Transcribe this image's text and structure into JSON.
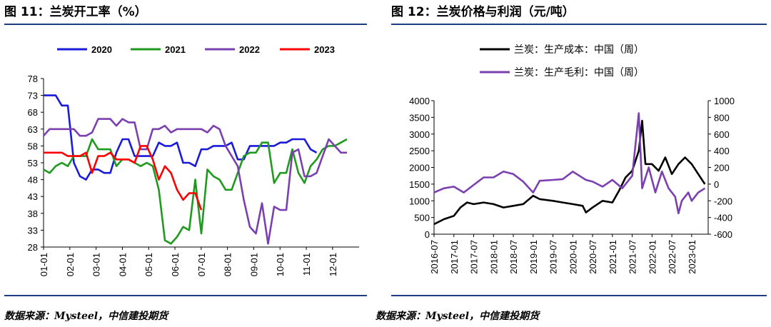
{
  "left": {
    "title": "图 11：兰炭开工率（%）",
    "source": "数据来源：Mysteel，中信建投期货"
  },
  "right": {
    "title": "图 12：兰炭价格与利润（元/吨）",
    "source": "数据来源：Mysteel，中信建投期货"
  },
  "colors": {
    "rule": "#1f3c88",
    "blue": "#1a1adc",
    "green": "#1f9a1f",
    "purple": "#7b3fb0",
    "red": "#ff0000",
    "black": "#000000"
  },
  "chart_data": [
    {
      "type": "line",
      "title": "图 11：兰炭开工率（%）",
      "xlabel": "",
      "ylabel": "",
      "ylim": [
        28,
        78
      ],
      "yticks": [
        78,
        73,
        68,
        63,
        58,
        53,
        48,
        43,
        38,
        33,
        28
      ],
      "xlim": [
        1,
        53
      ],
      "xticks": [
        "01-01",
        "02-01",
        "03-01",
        "04-01",
        "05-01",
        "06-01",
        "07-01",
        "08-01",
        "09-01",
        "10-01",
        "11-01",
        "12-01"
      ],
      "legend_position": "top",
      "series": [
        {
          "name": "2020",
          "color": "#1a1adc",
          "points": [
            [
              1,
              73
            ],
            [
              2,
              73
            ],
            [
              3,
              73
            ],
            [
              4,
              70
            ],
            [
              5,
              70
            ],
            [
              6,
              53
            ],
            [
              7,
              49
            ],
            [
              8,
              48
            ],
            [
              9,
              51
            ],
            [
              10,
              51
            ],
            [
              11,
              50
            ],
            [
              12,
              50
            ],
            [
              13,
              56
            ],
            [
              14,
              60
            ],
            [
              15,
              60
            ],
            [
              16,
              55
            ],
            [
              17,
              55
            ],
            [
              18,
              55
            ],
            [
              19,
              55
            ],
            [
              20,
              59
            ],
            [
              21,
              58
            ],
            [
              22,
              58
            ],
            [
              23,
              59
            ],
            [
              24,
              53
            ],
            [
              25,
              53
            ],
            [
              26,
              52
            ],
            [
              27,
              57
            ],
            [
              28,
              57
            ],
            [
              29,
              58
            ],
            [
              30,
              58
            ],
            [
              31,
              58
            ],
            [
              32,
              59
            ],
            [
              33,
              54
            ],
            [
              34,
              54
            ],
            [
              35,
              58
            ],
            [
              36,
              58
            ],
            [
              37,
              58
            ],
            [
              38,
              58
            ],
            [
              39,
              58
            ],
            [
              40,
              59
            ],
            [
              41,
              59
            ],
            [
              42,
              60
            ],
            [
              43,
              60
            ],
            [
              44,
              60
            ],
            [
              45,
              57
            ],
            [
              46,
              56
            ]
          ]
        },
        {
          "name": "2021",
          "color": "#1f9a1f",
          "points": [
            [
              1,
              51
            ],
            [
              2,
              50
            ],
            [
              3,
              52
            ],
            [
              4,
              53
            ],
            [
              5,
              52
            ],
            [
              6,
              55
            ],
            [
              7,
              55
            ],
            [
              8,
              55
            ],
            [
              9,
              60
            ],
            [
              10,
              57
            ],
            [
              11,
              57
            ],
            [
              12,
              57
            ],
            [
              13,
              52
            ],
            [
              14,
              54
            ],
            [
              15,
              54
            ],
            [
              16,
              53
            ],
            [
              17,
              52
            ],
            [
              18,
              53
            ],
            [
              19,
              52
            ],
            [
              20,
              45
            ],
            [
              21,
              30
            ],
            [
              22,
              29
            ],
            [
              23,
              31
            ],
            [
              24,
              34
            ],
            [
              25,
              33
            ],
            [
              26,
              48
            ],
            [
              27,
              32
            ],
            [
              28,
              51
            ],
            [
              29,
              49
            ],
            [
              30,
              48
            ],
            [
              31,
              45
            ],
            [
              32,
              45
            ],
            [
              33,
              50
            ],
            [
              34,
              55
            ],
            [
              35,
              56
            ],
            [
              36,
              56
            ],
            [
              37,
              59
            ],
            [
              38,
              59
            ],
            [
              39,
              47
            ],
            [
              40,
              50
            ],
            [
              41,
              50
            ],
            [
              42,
              57
            ],
            [
              43,
              50
            ],
            [
              44,
              47
            ],
            [
              45,
              52
            ],
            [
              46,
              54
            ],
            [
              47,
              57
            ],
            [
              48,
              58
            ],
            [
              49,
              58
            ],
            [
              50,
              59
            ],
            [
              51,
              60
            ]
          ]
        },
        {
          "name": "2022",
          "color": "#7b3fb0",
          "points": [
            [
              1,
              61
            ],
            [
              2,
              63
            ],
            [
              3,
              63
            ],
            [
              4,
              63
            ],
            [
              5,
              63
            ],
            [
              6,
              63
            ],
            [
              7,
              61
            ],
            [
              8,
              61
            ],
            [
              9,
              62
            ],
            [
              10,
              66
            ],
            [
              11,
              66
            ],
            [
              12,
              66
            ],
            [
              13,
              64
            ],
            [
              14,
              66
            ],
            [
              15,
              65
            ],
            [
              16,
              65
            ],
            [
              17,
              57
            ],
            [
              18,
              57
            ],
            [
              19,
              63
            ],
            [
              20,
              63
            ],
            [
              21,
              64
            ],
            [
              22,
              62
            ],
            [
              23,
              63
            ],
            [
              24,
              63
            ],
            [
              25,
              63
            ],
            [
              26,
              63
            ],
            [
              27,
              63
            ],
            [
              28,
              62
            ],
            [
              29,
              64
            ],
            [
              30,
              63
            ],
            [
              31,
              58
            ],
            [
              32,
              55
            ],
            [
              33,
              52
            ],
            [
              34,
              42
            ],
            [
              35,
              34
            ],
            [
              36,
              32
            ],
            [
              37,
              41
            ],
            [
              38,
              29
            ],
            [
              39,
              40
            ],
            [
              40,
              39
            ],
            [
              41,
              39
            ],
            [
              42,
              56
            ],
            [
              43,
              57
            ],
            [
              44,
              49
            ],
            [
              45,
              49
            ],
            [
              46,
              50
            ],
            [
              47,
              55
            ],
            [
              48,
              60
            ],
            [
              49,
              58
            ],
            [
              50,
              56
            ],
            [
              51,
              56
            ]
          ]
        },
        {
          "name": "2023",
          "color": "#ff0000",
          "points": [
            [
              1,
              56
            ],
            [
              2,
              56
            ],
            [
              3,
              56
            ],
            [
              4,
              56
            ],
            [
              5,
              55
            ],
            [
              6,
              55
            ],
            [
              7,
              55
            ],
            [
              8,
              56
            ],
            [
              9,
              50
            ],
            [
              10,
              55
            ],
            [
              11,
              55
            ],
            [
              12,
              56
            ],
            [
              13,
              54
            ],
            [
              14,
              54
            ],
            [
              15,
              54
            ],
            [
              16,
              53
            ],
            [
              17,
              58
            ],
            [
              18,
              58
            ],
            [
              19,
              54
            ],
            [
              20,
              48
            ],
            [
              21,
              52
            ],
            [
              22,
              50
            ],
            [
              23,
              45
            ],
            [
              24,
              42
            ],
            [
              25,
              44
            ],
            [
              26,
              44
            ],
            [
              27,
              39
            ]
          ]
        }
      ]
    },
    {
      "type": "line",
      "title": "图 12：兰炭价格与利润（元/吨）",
      "xlabel": "",
      "ylabel": "",
      "ylim": [
        0,
        4000
      ],
      "yticks": [
        4000,
        3500,
        3000,
        2500,
        2000,
        1500,
        1000,
        500,
        0
      ],
      "y2lim": [
        -600,
        1000
      ],
      "y2ticks": [
        1000,
        800,
        600,
        400,
        200,
        0,
        -200,
        -400,
        -600
      ],
      "xticks": [
        "2016-07",
        "2017-01",
        "2017-07",
        "2018-01",
        "2018-07",
        "2019-01",
        "2019-07",
        "2020-01",
        "2020-07",
        "2021-01",
        "2021-07",
        "2022-01",
        "2022-07",
        "2023-01"
      ],
      "legend_position": "top-center",
      "series": [
        {
          "name": "兰炭：生产成本：中国（周）",
          "axis": "left",
          "color": "#000000",
          "points": [
            [
              "2016-07",
              300
            ],
            [
              "2016-10",
              450
            ],
            [
              "2017-01",
              550
            ],
            [
              "2017-03",
              800
            ],
            [
              "2017-05",
              950
            ],
            [
              "2017-07",
              900
            ],
            [
              "2017-10",
              950
            ],
            [
              "2018-01",
              900
            ],
            [
              "2018-04",
              800
            ],
            [
              "2018-07",
              850
            ],
            [
              "2018-10",
              900
            ],
            [
              "2019-01",
              1150
            ],
            [
              "2019-03",
              1050
            ],
            [
              "2019-07",
              1000
            ],
            [
              "2019-10",
              950
            ],
            [
              "2020-01",
              900
            ],
            [
              "2020-04",
              850
            ],
            [
              "2020-05",
              650
            ],
            [
              "2020-07",
              800
            ],
            [
              "2020-10",
              1000
            ],
            [
              "2021-01",
              950
            ],
            [
              "2021-03",
              1300
            ],
            [
              "2021-05",
              1700
            ],
            [
              "2021-07",
              1900
            ],
            [
              "2021-09",
              2500
            ],
            [
              "2021-10",
              3400
            ],
            [
              "2021-11",
              2100
            ],
            [
              "2022-01",
              2100
            ],
            [
              "2022-03",
              1900
            ],
            [
              "2022-05",
              2300
            ],
            [
              "2022-07",
              1800
            ],
            [
              "2022-09",
              2100
            ],
            [
              "2022-11",
              2300
            ],
            [
              "2023-01",
              2100
            ],
            [
              "2023-03",
              1800
            ],
            [
              "2023-05",
              1500
            ]
          ]
        },
        {
          "name": "兰炭：生产毛利：中国（周）",
          "axis": "right",
          "color": "#7b3fb0",
          "points": [
            [
              "2016-07",
              -100
            ],
            [
              "2016-10",
              -50
            ],
            [
              "2017-01",
              -30
            ],
            [
              "2017-04",
              -100
            ],
            [
              "2017-07",
              -10
            ],
            [
              "2017-10",
              80
            ],
            [
              "2018-01",
              80
            ],
            [
              "2018-04",
              150
            ],
            [
              "2018-07",
              120
            ],
            [
              "2018-10",
              30
            ],
            [
              "2019-01",
              -100
            ],
            [
              "2019-03",
              40
            ],
            [
              "2019-07",
              50
            ],
            [
              "2019-10",
              60
            ],
            [
              "2020-01",
              150
            ],
            [
              "2020-03",
              100
            ],
            [
              "2020-05",
              50
            ],
            [
              "2020-07",
              30
            ],
            [
              "2020-10",
              -30
            ],
            [
              "2021-01",
              50
            ],
            [
              "2021-04",
              -50
            ],
            [
              "2021-07",
              100
            ],
            [
              "2021-09",
              850
            ],
            [
              "2021-10",
              -50
            ],
            [
              "2021-12",
              200
            ],
            [
              "2022-02",
              -100
            ],
            [
              "2022-04",
              150
            ],
            [
              "2022-06",
              -50
            ],
            [
              "2022-08",
              -150
            ],
            [
              "2022-09",
              -350
            ],
            [
              "2022-10",
              -200
            ],
            [
              "2022-12",
              -100
            ],
            [
              "2023-01",
              -200
            ],
            [
              "2023-03",
              -100
            ],
            [
              "2023-05",
              -50
            ]
          ]
        }
      ]
    }
  ]
}
